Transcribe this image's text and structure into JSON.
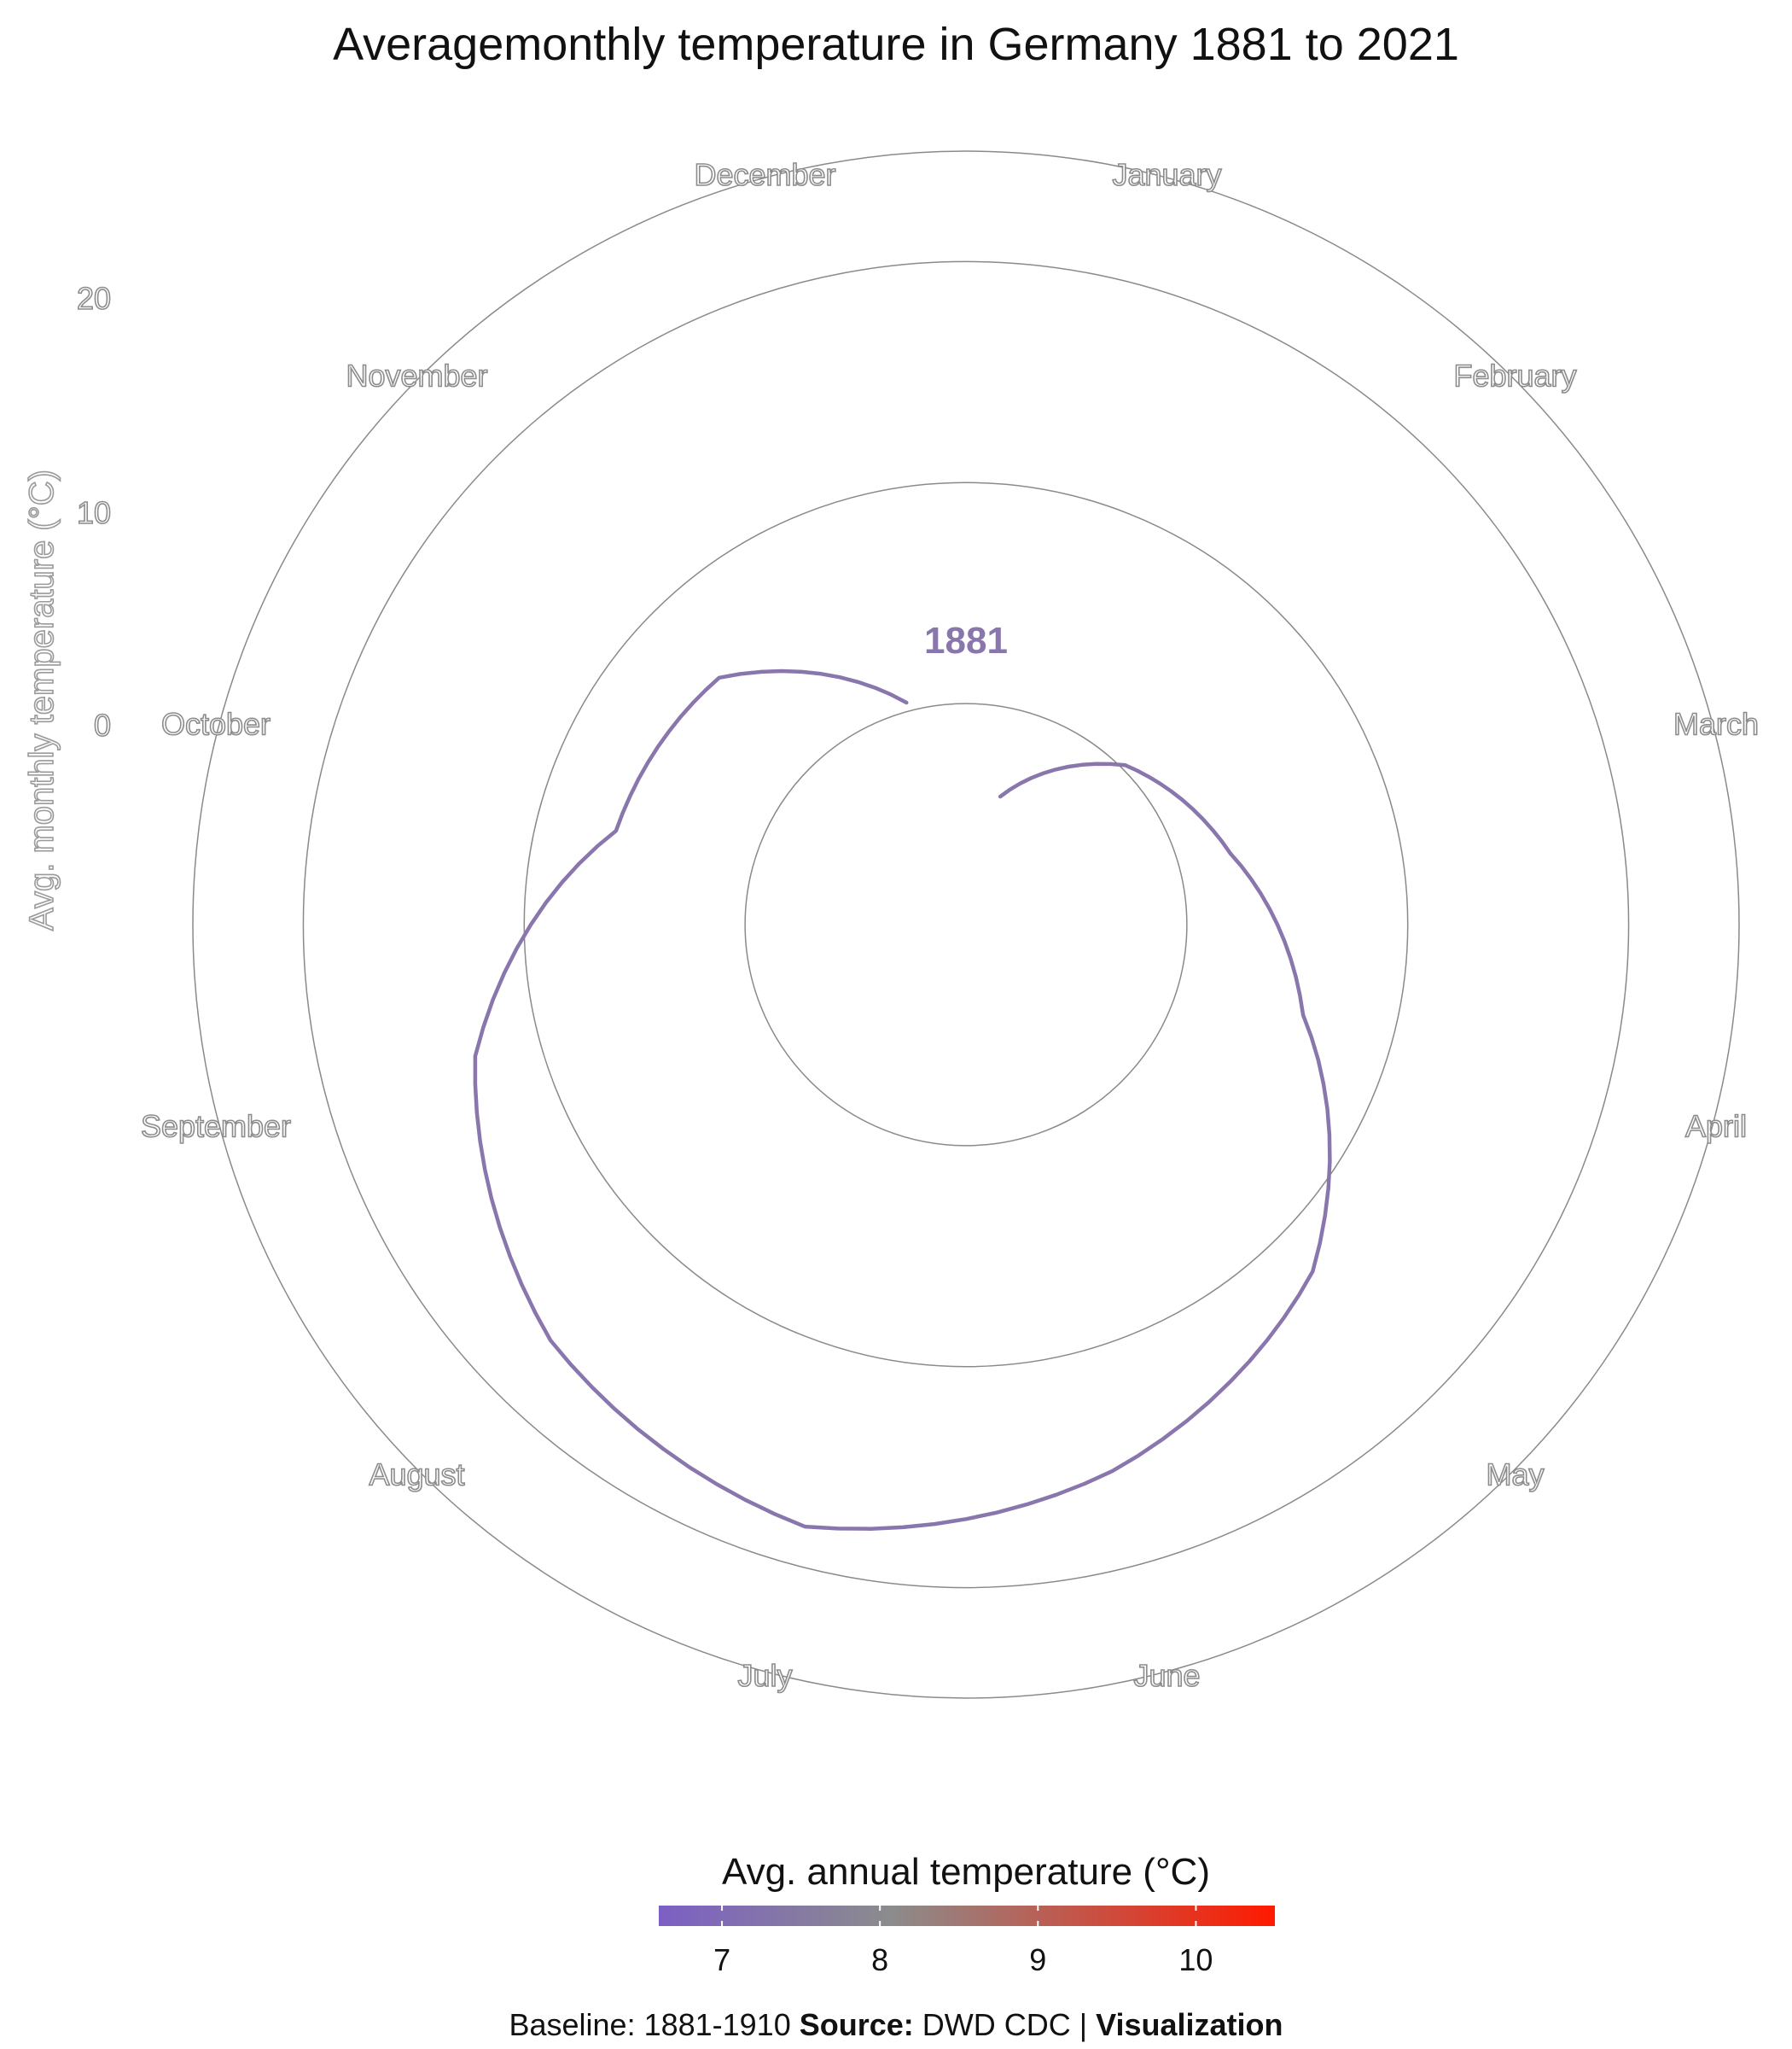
{
  "chart_data": {
    "type": "line",
    "projection": "polar",
    "title": "Averagemonthly temperature in Germany 1881 to 2021",
    "ylabel": "Avg. monthly temperature (°C)",
    "y_ticks": [
      "20",
      "10",
      "0"
    ],
    "ylim": [
      -10,
      25
    ],
    "categories": [
      "January",
      "February",
      "March",
      "April",
      "May",
      "June",
      "July",
      "August",
      "September",
      "October",
      "November",
      "December"
    ],
    "year_label": "1881",
    "series": [
      {
        "name": "1881",
        "color": "#8876ad",
        "values": [
          -4.0,
          0.2,
          2.4,
          5.8,
          12.2,
          15.6,
          18.2,
          16.6,
          13.0,
          6.4,
          5.8,
          0.4
        ]
      }
    ],
    "grid": true,
    "legend": {
      "title": "Avg. annual temperature (°C)",
      "ticks": [
        "7",
        "8",
        "9",
        "10"
      ],
      "tick_values": [
        7,
        8,
        9,
        10
      ],
      "range": [
        6.6,
        10.5
      ],
      "color_low": "#7c5fc4",
      "color_mid": "#8c8c8c",
      "color_high": "#ff1a00",
      "placement": "bottom"
    }
  },
  "caption": {
    "part1": "Baseline:  1881-1910 ",
    "part2": "Source:",
    "part3": "  DWD  CDC  |  ",
    "part4": "Visualization"
  }
}
